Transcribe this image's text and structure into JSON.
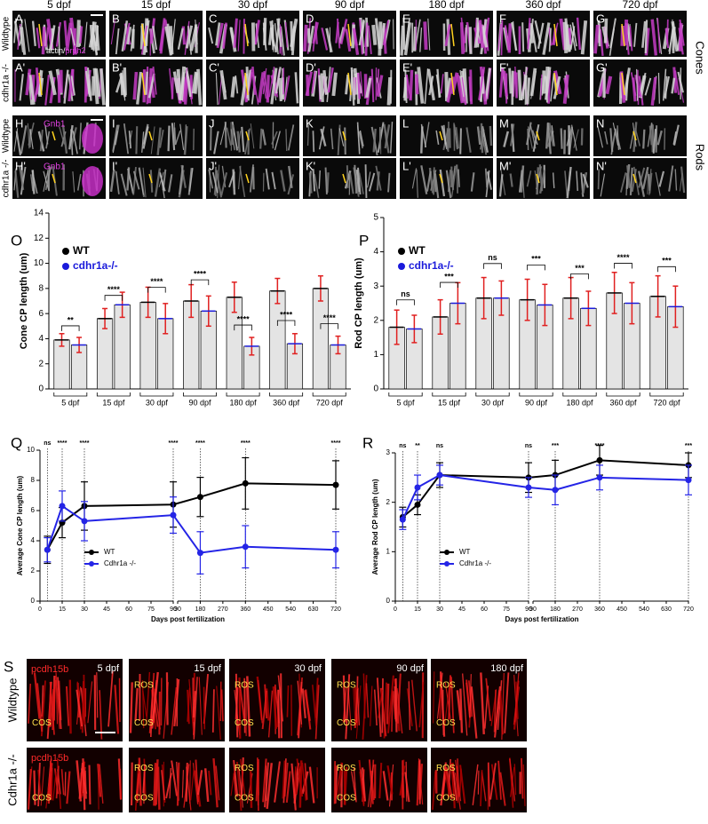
{
  "figure": {
    "image_grid": {
      "columns": [
        "5 dpf",
        "15 dpf",
        "30 dpf",
        "90 dpf",
        "180 dpf",
        "360 dpf",
        "720 dpf"
      ],
      "rows": [
        {
          "label": "Wildtype",
          "letters": [
            "A",
            "B",
            "C",
            "D",
            "E",
            "F",
            "G"
          ]
        },
        {
          "label": "cdhr1a -/-",
          "letters": [
            "A'",
            "B'",
            "C'",
            "D'",
            "E'",
            "F'",
            "G'"
          ]
        },
        {
          "label": "Wildtype",
          "letters": [
            "H",
            "I",
            "J",
            "K",
            "L",
            "M",
            "N"
          ]
        },
        {
          "label": "cdhr1a -/-",
          "letters": [
            "H'",
            "I'",
            "J'",
            "K'",
            "L'",
            "M'",
            "N'"
          ]
        }
      ],
      "groups": [
        "Cones",
        "Rods"
      ],
      "cone_stain": [
        "actin/",
        "prph2"
      ],
      "rod_stain": "Gnb1"
    },
    "panel_s": {
      "letter": "S",
      "rows": [
        "Wildtype",
        "Cdhr1a -/-"
      ],
      "stain": "pcdh15b",
      "columns": [
        "5 dpf",
        "15 dpf",
        "30 dpf",
        "90 dpf",
        "180 dpf"
      ],
      "ros": "ROS",
      "cos": "COS"
    }
  },
  "chart_data": [
    {
      "panel": "O",
      "type": "bar",
      "ylabel": "Cone CP length (um)",
      "categories": [
        "5 dpf",
        "15 dpf",
        "30 dpf",
        "90 dpf",
        "180 dpf",
        "360 dpf",
        "720 dpf"
      ],
      "ylim": [
        0,
        14
      ],
      "yticks": [
        0,
        2,
        4,
        6,
        8,
        10,
        12,
        14
      ],
      "error_color": "#e02020",
      "series": [
        {
          "name": "WT",
          "color": "#000000",
          "values": [
            3.9,
            5.6,
            6.9,
            7.0,
            7.3,
            7.8,
            8.0
          ],
          "errors": [
            0.5,
            0.8,
            1.2,
            1.3,
            1.2,
            1.0,
            1.0
          ]
        },
        {
          "name": "cdhr1a-/-",
          "color": "#1a1adb",
          "values": [
            3.5,
            6.7,
            5.6,
            6.2,
            3.4,
            3.6,
            3.5
          ],
          "errors": [
            0.6,
            1.0,
            1.2,
            1.2,
            0.7,
            0.8,
            0.7
          ]
        }
      ],
      "significance": [
        "**",
        "****",
        "****",
        "****",
        "****",
        "****",
        "****"
      ]
    },
    {
      "panel": "P",
      "type": "bar",
      "ylabel": "Rod CP length (um)",
      "categories": [
        "5 dpf",
        "15 dpf",
        "30 dpf",
        "90 dpf",
        "180 dpf",
        "360 dpf",
        "720 dpf"
      ],
      "ylim": [
        0,
        5
      ],
      "yticks": [
        0,
        1,
        2,
        3,
        4,
        5
      ],
      "error_color": "#e02020",
      "series": [
        {
          "name": "WT",
          "color": "#000000",
          "values": [
            1.8,
            2.1,
            2.65,
            2.6,
            2.65,
            2.8,
            2.7
          ],
          "errors": [
            0.5,
            0.5,
            0.6,
            0.6,
            0.6,
            0.6,
            0.6
          ]
        },
        {
          "name": "cdhr1a-/-",
          "color": "#1a1adb",
          "values": [
            1.75,
            2.5,
            2.65,
            2.45,
            2.35,
            2.5,
            2.4
          ],
          "errors": [
            0.4,
            0.6,
            0.5,
            0.6,
            0.5,
            0.6,
            0.6
          ]
        }
      ],
      "significance": [
        "ns",
        "***",
        "ns",
        "***",
        "***",
        "****",
        "***"
      ]
    },
    {
      "panel": "Q",
      "type": "line",
      "ylabel": "Average Cone CP length (um)",
      "xlabel": "Days post fertilization",
      "x": [
        5,
        15,
        30,
        90,
        180,
        360,
        720
      ],
      "x_segments": [
        {
          "xlim": [
            0,
            90
          ],
          "xticks": [
            0,
            15,
            30,
            45,
            60,
            75,
            90
          ]
        },
        {
          "xlim": [
            90,
            720
          ],
          "xticks": [
            90,
            180,
            270,
            360,
            450,
            540,
            630,
            720
          ]
        }
      ],
      "ylim": [
        0,
        10
      ],
      "yticks": [
        0,
        2,
        4,
        6,
        8,
        10
      ],
      "legend": "lower left",
      "series": [
        {
          "name": "WT",
          "color": "#000000",
          "values": [
            3.4,
            5.2,
            6.3,
            6.4,
            6.9,
            7.8,
            7.7
          ],
          "errors": [
            0.9,
            1.0,
            1.6,
            1.5,
            1.3,
            1.7,
            1.6
          ]
        },
        {
          "name": "Cdhr1a -/-",
          "color": "#2424e6",
          "values": [
            3.4,
            6.3,
            5.3,
            5.7,
            3.2,
            3.6,
            3.4
          ],
          "errors": [
            0.8,
            1.0,
            1.3,
            1.2,
            1.4,
            1.4,
            1.2
          ]
        }
      ],
      "significance": [
        "ns",
        "****",
        "****",
        "****",
        "****",
        "****",
        "****"
      ]
    },
    {
      "panel": "R",
      "type": "line",
      "ylabel": "Average Rod CP length (um)",
      "xlabel": "Days post fertilization",
      "x": [
        5,
        15,
        30,
        90,
        180,
        360,
        720
      ],
      "x_segments": [
        {
          "xlim": [
            0,
            90
          ],
          "xticks": [
            0,
            15,
            30,
            45,
            60,
            75,
            90
          ]
        },
        {
          "xlim": [
            90,
            720
          ],
          "xticks": [
            90,
            180,
            270,
            360,
            450,
            540,
            630,
            720
          ]
        }
      ],
      "ylim": [
        0,
        3
      ],
      "yticks": [
        0,
        1,
        2,
        3
      ],
      "legend": "lower left",
      "series": [
        {
          "name": "WT",
          "color": "#000000",
          "values": [
            1.7,
            1.95,
            2.55,
            2.5,
            2.55,
            2.85,
            2.75
          ],
          "errors": [
            0.2,
            0.2,
            0.25,
            0.3,
            0.3,
            0.3,
            0.25
          ]
        },
        {
          "name": "Cdhr1a -/-",
          "color": "#2424e6",
          "values": [
            1.65,
            2.3,
            2.55,
            2.3,
            2.25,
            2.5,
            2.45
          ],
          "errors": [
            0.2,
            0.25,
            0.2,
            0.2,
            0.3,
            0.25,
            0.3
          ]
        }
      ],
      "significance": [
        "ns",
        "**",
        "ns",
        "ns",
        "***",
        "****",
        "***"
      ]
    }
  ]
}
